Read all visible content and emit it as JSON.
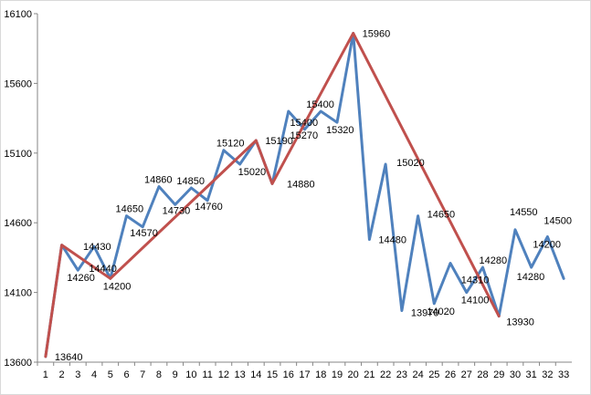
{
  "chart_data": {
    "type": "line",
    "title": "",
    "xlabel": "",
    "ylabel": "",
    "x": [
      1,
      2,
      3,
      4,
      5,
      6,
      7,
      8,
      9,
      10,
      11,
      12,
      13,
      14,
      15,
      16,
      17,
      18,
      19,
      20,
      21,
      22,
      23,
      24,
      25,
      26,
      27,
      28,
      29,
      30,
      31,
      32,
      33
    ],
    "ylim": [
      13600,
      16100
    ],
    "yticks": [
      13600,
      14100,
      14600,
      15100,
      15600,
      16100
    ],
    "grid": false,
    "legend": "none",
    "series": [
      {
        "color": "#4f81bd",
        "values": [
          13640,
          14440,
          14260,
          14430,
          14200,
          14650,
          14570,
          14860,
          14730,
          14850,
          14760,
          15120,
          15020,
          15190,
          14880,
          15400,
          15270,
          15400,
          15320,
          15960,
          14480,
          15020,
          13970,
          14650,
          14020,
          14310,
          14100,
          14280,
          13930,
          14550,
          14280,
          14500,
          14200
        ]
      },
      {
        "color": "#c0504d",
        "x": [
          1,
          2,
          5,
          14,
          15,
          20,
          29
        ],
        "values": [
          13640,
          14440,
          14200,
          15190,
          14880,
          15960,
          13930
        ]
      }
    ],
    "annotations": [
      {
        "x": 1,
        "label": "13640"
      },
      {
        "x": 3,
        "label": "14440"
      },
      {
        "x": 3,
        "label": "14260"
      },
      {
        "x": 4,
        "label": "14430"
      },
      {
        "x": 5,
        "label": "14200"
      },
      {
        "x": 6,
        "label": "14650"
      },
      {
        "x": 7,
        "label": "14570"
      },
      {
        "x": 8,
        "label": "14860"
      },
      {
        "x": 9,
        "label": "14730"
      },
      {
        "x": 10,
        "label": "14850"
      },
      {
        "x": 11,
        "label": "14760"
      },
      {
        "x": 12,
        "label": "15120"
      },
      {
        "x": 13,
        "label": "15020"
      },
      {
        "x": 14,
        "label": "15190"
      },
      {
        "x": 15,
        "label": "14880"
      },
      {
        "x": 17,
        "label": "15400"
      },
      {
        "x": 17,
        "label": "15270"
      },
      {
        "x": 18,
        "label": "15400"
      },
      {
        "x": 19,
        "label": "15320"
      },
      {
        "x": 20,
        "label": "15960"
      },
      {
        "x": 21,
        "label": "14480"
      },
      {
        "x": 22,
        "label": "15020"
      },
      {
        "x": 23,
        "label": "13970"
      },
      {
        "x": 24,
        "label": "14650"
      },
      {
        "x": 25,
        "label": "14020"
      },
      {
        "x": 27,
        "label": "14310"
      },
      {
        "x": 27,
        "label": "14100"
      },
      {
        "x": 28,
        "label": "14280"
      },
      {
        "x": 29,
        "label": "13930"
      },
      {
        "x": 30,
        "label": "14550"
      },
      {
        "x": 31,
        "label": "14280"
      },
      {
        "x": 32,
        "label": "14500"
      },
      {
        "x": 32,
        "label": "14200"
      }
    ]
  }
}
